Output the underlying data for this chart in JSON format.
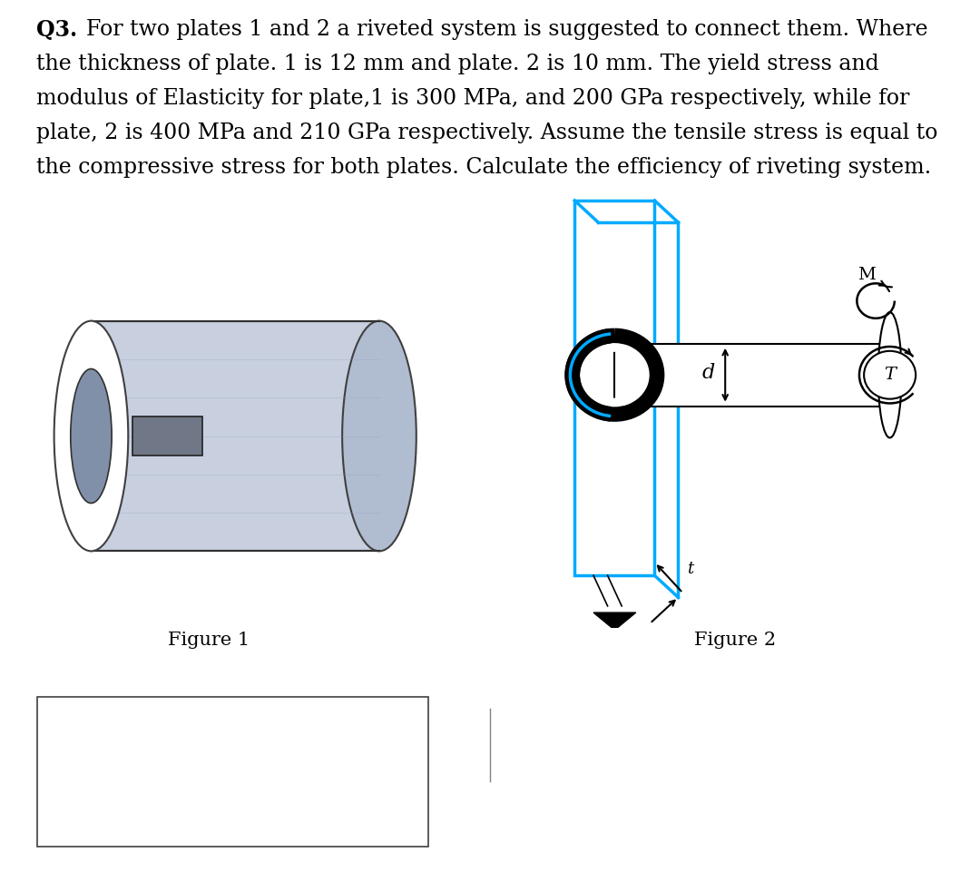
{
  "title_text": "Q3. For two plates 1 and 2 a riveted system is suggested to connect them. Where\nthe thickness of plate. 1 is 12 mm and plate. 2 is 10 mm. The yield stress and\nmodulus of Elasticity for plate,1 is 300 MPa, and 200 GPa respectively, while for\nplate, 2 is 400 MPa and 210 GPa respectively. Assume the tensile stress is equal to\nthe compressive stress for both plates. Calculate the efficiency of riveting system.",
  "fig1_label": "Figure 1",
  "fig2_label": "Figure 2",
  "label_d": "d",
  "label_t": "t",
  "label_M": "M",
  "label_T": "T",
  "bg_color": "#ffffff",
  "text_color": "#000000",
  "cyan_color": "#00aaff",
  "black_color": "#000000",
  "gray_light": "#d0d8e8",
  "gray_mid": "#a0a8b8"
}
